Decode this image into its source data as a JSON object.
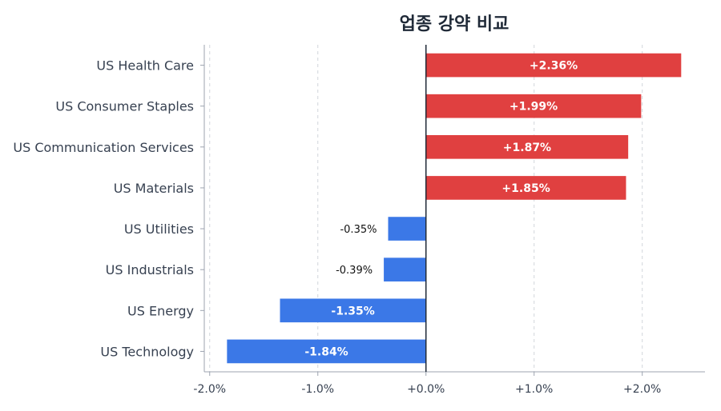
{
  "chart_data": {
    "type": "bar",
    "orientation": "horizontal",
    "title": "업종 강약 비교",
    "xlabel": "",
    "ylabel": "",
    "xlim": [
      -2.05,
      2.58
    ],
    "grid": true,
    "categories": [
      "US Health Care",
      "US Consumer Staples",
      "US Communication Services",
      "US Materials",
      "US Utilities",
      "US Industrials",
      "US Energy",
      "US Technology"
    ],
    "values": [
      2.36,
      1.99,
      1.87,
      1.85,
      -0.35,
      -0.39,
      -1.35,
      -1.84
    ],
    "value_labels": [
      "+2.36%",
      "+1.99%",
      "+1.87%",
      "+1.85%",
      "-0.35%",
      "-0.39%",
      "-1.35%",
      "-1.84%"
    ],
    "x_ticks": [
      -2,
      -1,
      0,
      1,
      2
    ],
    "x_tick_labels": [
      "-2.0%",
      "-1.0%",
      "+0.0%",
      "+1.0%",
      "+2.0%"
    ],
    "colors": {
      "positive": "#e04040",
      "negative": "#3b78e7"
    }
  }
}
